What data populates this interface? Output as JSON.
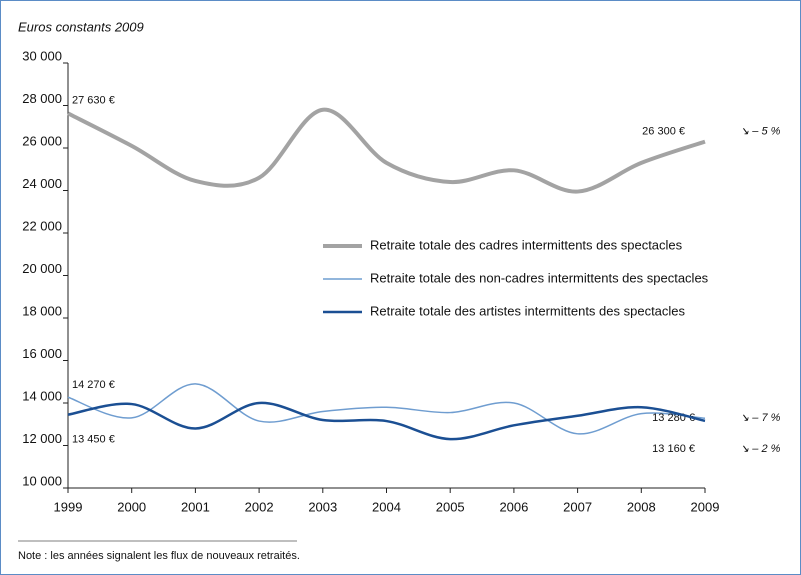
{
  "chart_data": {
    "type": "line",
    "subtitle": "Euros constants 2009",
    "note": "Note : les années signalent les flux de nouveaux retraités.",
    "x": [
      1999,
      2000,
      2001,
      2002,
      2003,
      2004,
      2005,
      2006,
      2007,
      2008,
      2009
    ],
    "xlim": [
      1999,
      2009
    ],
    "xticks": [
      1999,
      2000,
      2001,
      2002,
      2003,
      2004,
      2005,
      2006,
      2007,
      2008,
      2009
    ],
    "ylim": [
      10000,
      30000
    ],
    "yticks": [
      {
        "value": 10000,
        "label": "10 000"
      },
      {
        "value": 12000,
        "label": "12 000"
      },
      {
        "value": 14000,
        "label": "14 000"
      },
      {
        "value": 16000,
        "label": "16 000"
      },
      {
        "value": 18000,
        "label": "18 000"
      },
      {
        "value": 20000,
        "label": "20 000"
      },
      {
        "value": 22000,
        "label": "22 000"
      },
      {
        "value": 24000,
        "label": "24 000"
      },
      {
        "value": 26000,
        "label": "26 000"
      },
      {
        "value": 28000,
        "label": "28 000"
      },
      {
        "value": 30000,
        "label": "30 000"
      }
    ],
    "grid": false,
    "series": [
      {
        "name": "Retraite totale des cadres intermittents des spectacles",
        "color": "#a3a3a3",
        "values": [
          27630,
          26100,
          24450,
          24600,
          27800,
          25300,
          24400,
          24950,
          23950,
          25300,
          26300
        ],
        "value_labels": [
          "27 630 €",
          null,
          null,
          null,
          null,
          null,
          null,
          null,
          null,
          null,
          "26 300 €"
        ],
        "change": "↘ – 5 %"
      },
      {
        "name": "Retraite totale des non-cadres intermittents des spectacles",
        "color": "#6f9dd0",
        "values": [
          14270,
          13300,
          14900,
          13150,
          13600,
          13800,
          13550,
          14000,
          12550,
          13500,
          13280
        ],
        "value_labels": [
          "14 270 €",
          null,
          null,
          null,
          null,
          null,
          null,
          null,
          null,
          null,
          "13 280 €"
        ],
        "change": "↘ – 7 %"
      },
      {
        "name": "Retraite totale des artistes intermittents des spectacles",
        "color": "#1b4f93",
        "values": [
          13450,
          13950,
          12800,
          14000,
          13200,
          13150,
          12300,
          12950,
          13400,
          13800,
          13160
        ],
        "value_labels": [
          "13 450 €",
          null,
          null,
          null,
          null,
          null,
          null,
          null,
          null,
          null,
          "13 160 €"
        ],
        "change": "↘ – 2 %"
      }
    ]
  }
}
